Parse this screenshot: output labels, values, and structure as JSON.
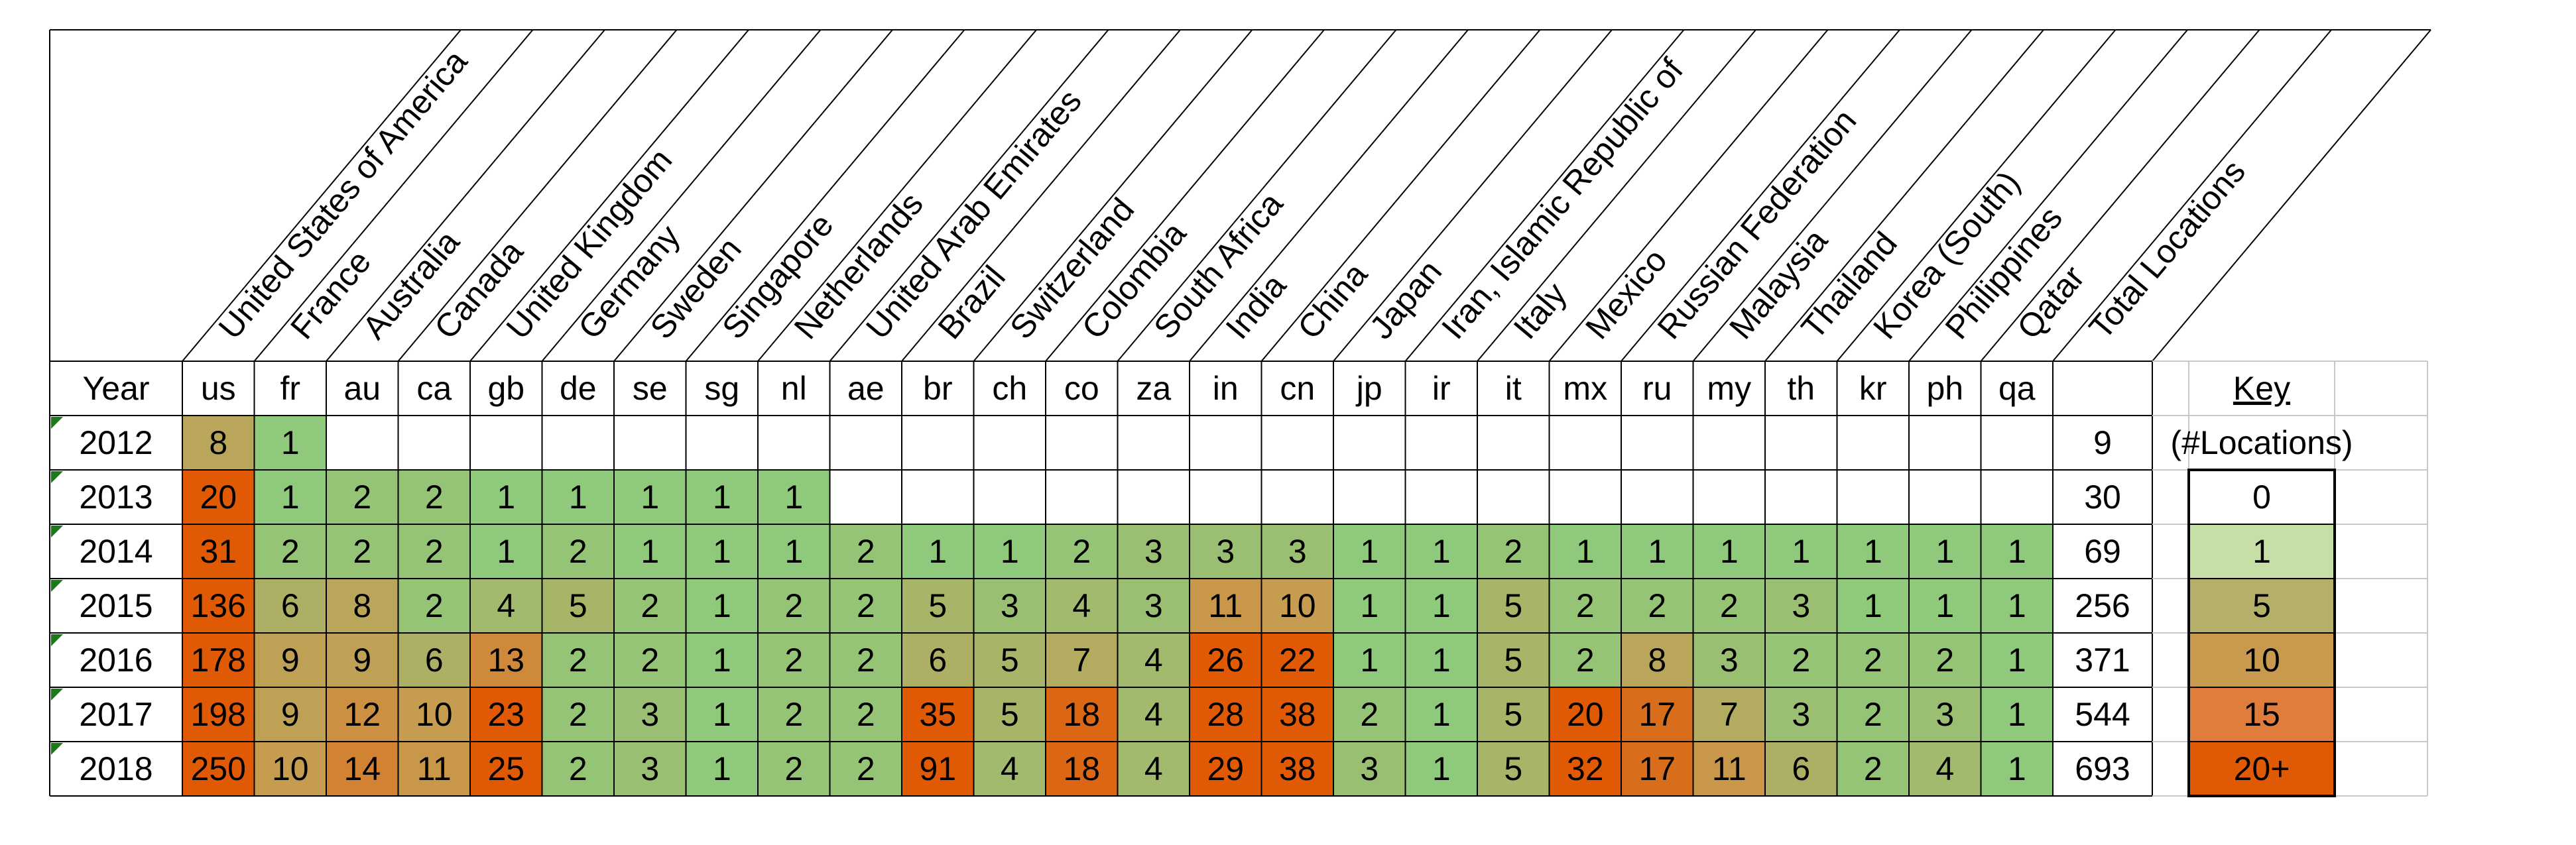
{
  "chart_data": {
    "type": "heatmap",
    "row_header": "Year",
    "codes": [
      "us",
      "fr",
      "au",
      "ca",
      "gb",
      "de",
      "se",
      "sg",
      "nl",
      "ae",
      "br",
      "ch",
      "co",
      "za",
      "in",
      "cn",
      "jp",
      "ir",
      "it",
      "mx",
      "ru",
      "my",
      "th",
      "kr",
      "ph",
      "qa"
    ],
    "country_names": [
      "United States of America",
      "France",
      "Australia",
      "Canada",
      "United Kingdom",
      "Germany",
      "Sweden",
      "Singapore",
      "Netherlands",
      "United Arab Emirates",
      "Brazil",
      "Switzerland",
      "Colombia",
      "South Africa",
      "India",
      "China",
      "Japan",
      "Iran, Islamic Republic of",
      "Italy",
      "Mexico",
      "Russian Federation",
      "Malaysia",
      "Thailand",
      "Korea (South)",
      "Philippines",
      "Qatar"
    ],
    "total_label": "Total Locations",
    "years": [
      "2012",
      "2013",
      "2014",
      "2015",
      "2016",
      "2017",
      "2018"
    ],
    "values": [
      [
        8,
        1,
        null,
        null,
        null,
        null,
        null,
        null,
        null,
        null,
        null,
        null,
        null,
        null,
        null,
        null,
        null,
        null,
        null,
        null,
        null,
        null,
        null,
        null,
        null,
        null
      ],
      [
        20,
        1,
        2,
        2,
        1,
        1,
        1,
        1,
        1,
        null,
        null,
        null,
        null,
        null,
        null,
        null,
        null,
        null,
        null,
        null,
        null,
        null,
        null,
        null,
        null,
        null
      ],
      [
        31,
        2,
        2,
        2,
        1,
        2,
        1,
        1,
        1,
        2,
        1,
        1,
        2,
        3,
        3,
        3,
        1,
        1,
        2,
        1,
        1,
        1,
        1,
        1,
        1,
        1
      ],
      [
        136,
        6,
        8,
        2,
        4,
        5,
        2,
        1,
        2,
        2,
        5,
        3,
        4,
        3,
        11,
        10,
        1,
        1,
        5,
        2,
        2,
        2,
        3,
        1,
        1,
        1
      ],
      [
        178,
        9,
        9,
        6,
        13,
        2,
        2,
        1,
        2,
        2,
        6,
        5,
        7,
        4,
        26,
        22,
        1,
        1,
        5,
        2,
        8,
        3,
        2,
        2,
        2,
        1
      ],
      [
        198,
        9,
        12,
        10,
        23,
        2,
        3,
        1,
        2,
        2,
        35,
        5,
        18,
        4,
        28,
        38,
        2,
        1,
        5,
        20,
        17,
        7,
        3,
        2,
        3,
        1
      ],
      [
        250,
        10,
        14,
        11,
        25,
        2,
        3,
        1,
        2,
        2,
        91,
        4,
        18,
        4,
        29,
        38,
        3,
        1,
        5,
        32,
        17,
        11,
        6,
        2,
        4,
        1
      ]
    ],
    "totals": [
      9,
      30,
      69,
      256,
      371,
      544,
      693
    ],
    "key": {
      "title": "Key",
      "subtitle": "(#Locations)",
      "labels": [
        "0",
        "1",
        "5",
        "10",
        "15",
        "20+"
      ],
      "colors": [
        "#ffffff",
        "#c6dfa6",
        "#b4b06a",
        "#c89a4e",
        "#e07c3c",
        "#e05a05"
      ]
    },
    "colors": {
      "low": "#8fc97c",
      "mid": "#c89a4e",
      "high": "#e05a05",
      "grid": "#000000"
    }
  }
}
